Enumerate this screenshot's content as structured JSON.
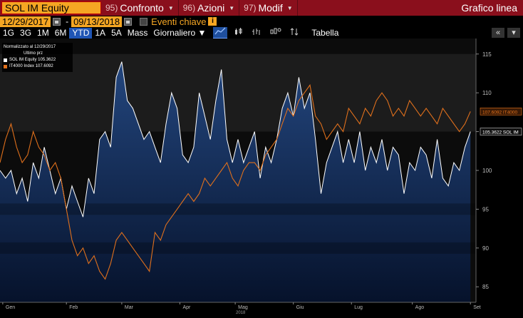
{
  "topbar": {
    "ticker_value": "SOL IM Equity",
    "menus": [
      {
        "num": "95)",
        "label": "Confronto",
        "has_arrow": true
      },
      {
        "num": "96)",
        "label": "Azioni",
        "has_arrow": true
      },
      {
        "num": "97)",
        "label": "Modif",
        "has_arrow": true
      }
    ],
    "title": "Grafico linea",
    "color": "#8a0f1c"
  },
  "datebar": {
    "start_date": "12/29/2017",
    "separator": "-",
    "end_date": "09/13/2018",
    "events_label": "Eventi chiave",
    "info_glyph": "i"
  },
  "toolbar": {
    "periods": [
      "1G",
      "3G",
      "1M",
      "6M",
      "YTD",
      "1A",
      "5A",
      "Mass"
    ],
    "active_period": "YTD",
    "frequency": "Giornaliero",
    "frequency_arrow": "▼",
    "icons": [
      "line-chart-icon",
      "candlestick-icon",
      "bar-chart-icon",
      "settings-chart-icon",
      "swap-icon"
    ],
    "table_label": "Tabella",
    "right_buttons": [
      "«",
      "▾"
    ]
  },
  "legend": {
    "header_line1": "Normalizzato al 12/29/2017",
    "header_line2": "Ultimo prz",
    "items": [
      {
        "name": "SOL IM Equity",
        "value": "105.3622",
        "color": "#ffffff"
      },
      {
        "name": "IT4000 Index",
        "value": "107.6092",
        "color": "#e0701c"
      }
    ]
  },
  "chart_data": {
    "type": "line",
    "title": "",
    "xlabel": "2018",
    "ylabel": "",
    "ylim": [
      83,
      117
    ],
    "yticks": [
      85,
      90,
      95,
      100,
      105,
      110,
      115
    ],
    "xticks": [
      {
        "label": "Gen",
        "x": 1
      },
      {
        "label": "Feb",
        "x": 24
      },
      {
        "label": "Mar",
        "x": 44
      },
      {
        "label": "Apr",
        "x": 65
      },
      {
        "label": "Mag",
        "x": 85
      },
      {
        "label": "Giu",
        "x": 106
      },
      {
        "label": "Lug",
        "x": 127
      },
      {
        "label": "Ago",
        "x": 149
      },
      {
        "label": "Set",
        "x": 170
      }
    ],
    "xlim": [
      0,
      172
    ],
    "grid": false,
    "last_value_labels": [
      {
        "text": "107.6092 IT4000",
        "color": "#e0701c"
      },
      {
        "text": "105.3622 SOL IM",
        "color": "#ffffff"
      }
    ],
    "series": [
      {
        "name": "SOL IM Equity",
        "color": "#ffffff",
        "fill": "#1b3a6b",
        "x": [
          0,
          2,
          4,
          6,
          8,
          10,
          12,
          14,
          16,
          18,
          20,
          22,
          24,
          26,
          28,
          30,
          32,
          34,
          36,
          38,
          40,
          42,
          44,
          46,
          48,
          50,
          52,
          54,
          56,
          58,
          60,
          62,
          64,
          66,
          68,
          70,
          72,
          74,
          76,
          78,
          80,
          82,
          84,
          86,
          88,
          90,
          92,
          94,
          96,
          98,
          100,
          102,
          104,
          106,
          108,
          110,
          112,
          114,
          116,
          118,
          120,
          122,
          124,
          126,
          128,
          130,
          132,
          134,
          136,
          138,
          140,
          142,
          144,
          146,
          148,
          150,
          152,
          154,
          156,
          158,
          160,
          162,
          164,
          166,
          168,
          170
        ],
        "values": [
          100,
          99,
          100,
          97,
          99,
          96,
          101,
          99,
          103,
          100,
          97,
          99,
          95,
          98,
          96,
          94,
          99,
          97,
          104,
          105,
          103,
          112,
          114,
          109,
          108,
          106,
          104,
          105,
          103,
          101,
          106,
          110,
          108,
          102,
          101,
          103,
          110,
          107,
          104,
          109,
          113,
          104,
          101,
          104,
          101,
          103,
          105,
          99,
          103,
          101,
          104,
          108,
          110,
          107,
          112,
          108,
          110,
          104,
          97,
          101,
          103,
          105,
          101,
          104,
          101,
          105,
          100,
          103,
          101,
          104,
          100,
          103,
          102,
          97,
          101,
          100,
          103,
          102,
          99,
          104,
          99,
          98,
          101,
          100,
          103,
          105
        ]
      },
      {
        "name": "IT4000 Index",
        "color": "#e0701c",
        "x": [
          0,
          2,
          4,
          6,
          8,
          10,
          12,
          14,
          16,
          18,
          20,
          22,
          24,
          26,
          28,
          30,
          32,
          34,
          36,
          38,
          40,
          42,
          44,
          46,
          48,
          50,
          52,
          54,
          56,
          58,
          60,
          62,
          64,
          66,
          68,
          70,
          72,
          74,
          76,
          78,
          80,
          82,
          84,
          86,
          88,
          90,
          92,
          94,
          96,
          98,
          100,
          102,
          104,
          106,
          108,
          110,
          112,
          114,
          116,
          118,
          120,
          122,
          124,
          126,
          128,
          130,
          132,
          134,
          136,
          138,
          140,
          142,
          144,
          146,
          148,
          150,
          152,
          154,
          156,
          158,
          160,
          162,
          164,
          166,
          168,
          170
        ],
        "values": [
          101,
          104,
          106,
          103,
          101,
          102,
          105,
          103,
          102,
          100,
          101,
          99,
          95,
          91,
          89,
          90,
          88,
          89,
          87,
          86,
          88,
          91,
          92,
          91,
          90,
          89,
          88,
          87,
          92,
          91,
          93,
          94,
          95,
          96,
          97,
          96,
          97,
          99,
          98,
          99,
          100,
          101,
          99,
          98,
          100,
          101,
          101,
          100,
          102,
          103,
          104,
          106,
          108,
          107,
          109,
          110,
          111,
          107,
          106,
          104,
          105,
          106,
          105,
          108,
          107,
          106,
          108,
          107,
          109,
          110,
          109,
          107,
          108,
          107,
          109,
          108,
          107,
          108,
          107,
          106,
          108,
          107,
          106,
          105,
          106,
          107.6
        ]
      }
    ]
  }
}
